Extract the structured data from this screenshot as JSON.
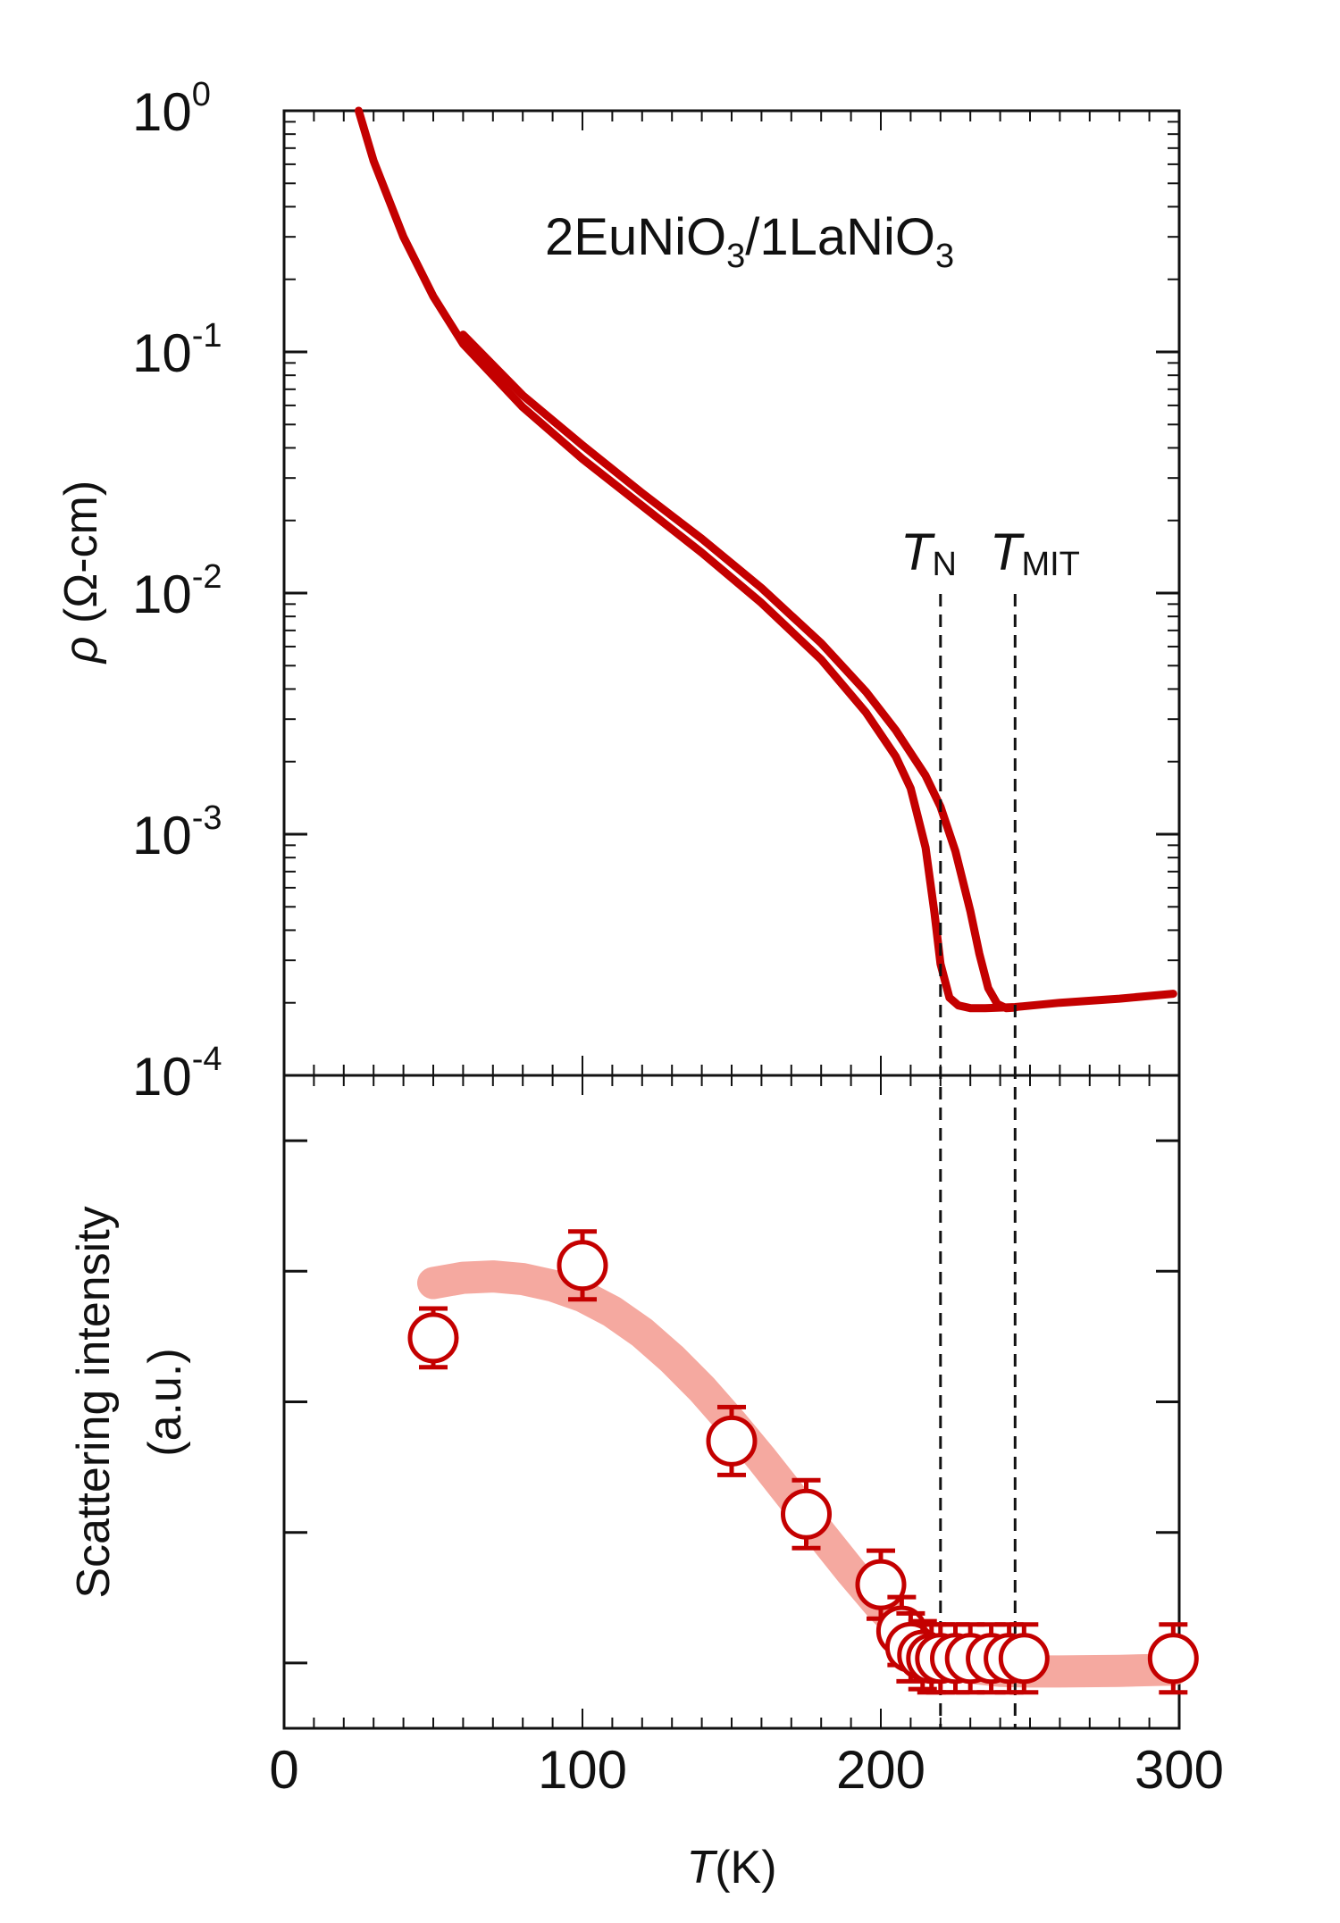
{
  "chart_data": [
    {
      "type": "line",
      "panel": "top",
      "annotation": {
        "main": "2EuNiO",
        "sub1": "3",
        "sep": "/1LaNiO",
        "sub2": "3"
      },
      "ylabel": {
        "symbol": "ρ",
        "units": " (Ω-cm)"
      },
      "yscale": "log",
      "ylim": [
        0.0001,
        1
      ],
      "xlim": [
        0,
        300
      ],
      "y_ticks": [
        {
          "base": "10",
          "exp": "0",
          "value": 1
        },
        {
          "base": "10",
          "exp": "-1",
          "value": 0.1
        },
        {
          "base": "10",
          "exp": "-2",
          "value": 0.01
        },
        {
          "base": "10",
          "exp": "-3",
          "value": 0.001
        },
        {
          "base": "10",
          "exp": "-4",
          "value": 0.0001
        }
      ],
      "color": "#c40000",
      "series": [
        {
          "x": [
            25,
            30,
            40,
            50,
            60,
            80,
            100,
            120,
            140,
            160,
            180,
            195,
            205,
            210,
            215,
            218,
            220,
            223,
            226,
            230,
            235,
            245,
            260,
            280,
            298
          ],
          "y": [
            1.0,
            0.62,
            0.3,
            0.17,
            0.108,
            0.059,
            0.036,
            0.023,
            0.0147,
            0.0091,
            0.0053,
            0.0032,
            0.0021,
            0.00155,
            0.00088,
            0.00047,
            0.00029,
            0.00021,
            0.000195,
            0.00019,
            0.00019,
            0.000192,
            0.0002,
            0.000208,
            0.000218
          ]
        },
        {
          "x": [
            60,
            80,
            100,
            120,
            140,
            160,
            180,
            195,
            205,
            215,
            220,
            225,
            230,
            233,
            236,
            239,
            242,
            245
          ],
          "y": [
            0.118,
            0.066,
            0.041,
            0.026,
            0.0168,
            0.0105,
            0.0062,
            0.0039,
            0.0027,
            0.00175,
            0.0013,
            0.00085,
            0.00048,
            0.00032,
            0.00023,
            0.000198,
            0.00019,
            0.000191
          ]
        }
      ],
      "reference_lines": [
        {
          "name": "T_N",
          "x": 220
        },
        {
          "name": "T_MIT",
          "x": 245
        }
      ],
      "markers": {
        "tn": {
          "main": "T",
          "sub": "N"
        },
        "tmit": {
          "main": "T",
          "sub": "MIT"
        }
      }
    },
    {
      "type": "scatter",
      "panel": "bottom",
      "ylabel_line1": "Scattering intensity",
      "ylabel_line2": "(a.u.)",
      "xlabel": {
        "italic": "T",
        "rest": "(K)"
      },
      "xlim": [
        0,
        300
      ],
      "x_ticks": [
        "0",
        "100",
        "200",
        "300"
      ],
      "x_tick_values": [
        0,
        100,
        200,
        300
      ],
      "ylim": [
        0,
        1
      ],
      "points": [
        {
          "x": 50,
          "y": 0.598,
          "err": 0.045
        },
        {
          "x": 100,
          "y": 0.709,
          "err": 0.052
        },
        {
          "x": 150,
          "y": 0.44,
          "err": 0.052
        },
        {
          "x": 175,
          "y": 0.328,
          "err": 0.052
        },
        {
          "x": 200,
          "y": 0.22,
          "err": 0.052
        },
        {
          "x": 207,
          "y": 0.149,
          "err": 0.052
        },
        {
          "x": 210,
          "y": 0.124,
          "err": 0.052
        },
        {
          "x": 214,
          "y": 0.112,
          "err": 0.052
        },
        {
          "x": 217,
          "y": 0.107,
          "err": 0.052
        },
        {
          "x": 220,
          "y": 0.107,
          "err": 0.052
        },
        {
          "x": 225,
          "y": 0.107,
          "err": 0.052
        },
        {
          "x": 230,
          "y": 0.107,
          "err": 0.052
        },
        {
          "x": 237,
          "y": 0.107,
          "err": 0.052
        },
        {
          "x": 243,
          "y": 0.107,
          "err": 0.052
        },
        {
          "x": 248,
          "y": 0.107,
          "err": 0.052
        },
        {
          "x": 298,
          "y": 0.107,
          "err": 0.052
        }
      ],
      "guide_curve": {
        "x": [
          50,
          60,
          70,
          80,
          90,
          100,
          110,
          120,
          130,
          140,
          150,
          160,
          170,
          180,
          190,
          200,
          210,
          220,
          230,
          240,
          250,
          260,
          280,
          298
        ],
        "y": [
          0.682,
          0.69,
          0.692,
          0.688,
          0.678,
          0.662,
          0.638,
          0.606,
          0.566,
          0.52,
          0.468,
          0.413,
          0.355,
          0.297,
          0.24,
          0.186,
          0.141,
          0.109,
          0.093,
          0.088,
          0.087,
          0.087,
          0.088,
          0.09
        ]
      },
      "marker_color": "#c40000",
      "guide_color": "#f5a9a0"
    }
  ]
}
